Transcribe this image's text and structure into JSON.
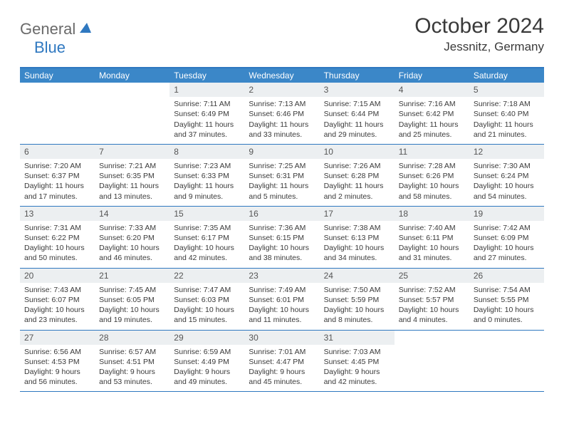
{
  "brand": {
    "general": "General",
    "blue": "Blue"
  },
  "title": "October 2024",
  "location": "Jessnitz, Germany",
  "dow": [
    "Sunday",
    "Monday",
    "Tuesday",
    "Wednesday",
    "Thursday",
    "Friday",
    "Saturday"
  ],
  "colors": {
    "header_bg": "#3b87c8",
    "border": "#2f78c0",
    "daynum_bg": "#eceff1",
    "text": "#3a3a3a",
    "logo_gray": "#6a6a6a"
  },
  "weeks": [
    [
      {
        "n": "",
        "sr": "",
        "ss": "",
        "dl": ""
      },
      {
        "n": "",
        "sr": "",
        "ss": "",
        "dl": ""
      },
      {
        "n": "1",
        "sr": "Sunrise: 7:11 AM",
        "ss": "Sunset: 6:49 PM",
        "dl": "Daylight: 11 hours and 37 minutes."
      },
      {
        "n": "2",
        "sr": "Sunrise: 7:13 AM",
        "ss": "Sunset: 6:46 PM",
        "dl": "Daylight: 11 hours and 33 minutes."
      },
      {
        "n": "3",
        "sr": "Sunrise: 7:15 AM",
        "ss": "Sunset: 6:44 PM",
        "dl": "Daylight: 11 hours and 29 minutes."
      },
      {
        "n": "4",
        "sr": "Sunrise: 7:16 AM",
        "ss": "Sunset: 6:42 PM",
        "dl": "Daylight: 11 hours and 25 minutes."
      },
      {
        "n": "5",
        "sr": "Sunrise: 7:18 AM",
        "ss": "Sunset: 6:40 PM",
        "dl": "Daylight: 11 hours and 21 minutes."
      }
    ],
    [
      {
        "n": "6",
        "sr": "Sunrise: 7:20 AM",
        "ss": "Sunset: 6:37 PM",
        "dl": "Daylight: 11 hours and 17 minutes."
      },
      {
        "n": "7",
        "sr": "Sunrise: 7:21 AM",
        "ss": "Sunset: 6:35 PM",
        "dl": "Daylight: 11 hours and 13 minutes."
      },
      {
        "n": "8",
        "sr": "Sunrise: 7:23 AM",
        "ss": "Sunset: 6:33 PM",
        "dl": "Daylight: 11 hours and 9 minutes."
      },
      {
        "n": "9",
        "sr": "Sunrise: 7:25 AM",
        "ss": "Sunset: 6:31 PM",
        "dl": "Daylight: 11 hours and 5 minutes."
      },
      {
        "n": "10",
        "sr": "Sunrise: 7:26 AM",
        "ss": "Sunset: 6:28 PM",
        "dl": "Daylight: 11 hours and 2 minutes."
      },
      {
        "n": "11",
        "sr": "Sunrise: 7:28 AM",
        "ss": "Sunset: 6:26 PM",
        "dl": "Daylight: 10 hours and 58 minutes."
      },
      {
        "n": "12",
        "sr": "Sunrise: 7:30 AM",
        "ss": "Sunset: 6:24 PM",
        "dl": "Daylight: 10 hours and 54 minutes."
      }
    ],
    [
      {
        "n": "13",
        "sr": "Sunrise: 7:31 AM",
        "ss": "Sunset: 6:22 PM",
        "dl": "Daylight: 10 hours and 50 minutes."
      },
      {
        "n": "14",
        "sr": "Sunrise: 7:33 AM",
        "ss": "Sunset: 6:20 PM",
        "dl": "Daylight: 10 hours and 46 minutes."
      },
      {
        "n": "15",
        "sr": "Sunrise: 7:35 AM",
        "ss": "Sunset: 6:17 PM",
        "dl": "Daylight: 10 hours and 42 minutes."
      },
      {
        "n": "16",
        "sr": "Sunrise: 7:36 AM",
        "ss": "Sunset: 6:15 PM",
        "dl": "Daylight: 10 hours and 38 minutes."
      },
      {
        "n": "17",
        "sr": "Sunrise: 7:38 AM",
        "ss": "Sunset: 6:13 PM",
        "dl": "Daylight: 10 hours and 34 minutes."
      },
      {
        "n": "18",
        "sr": "Sunrise: 7:40 AM",
        "ss": "Sunset: 6:11 PM",
        "dl": "Daylight: 10 hours and 31 minutes."
      },
      {
        "n": "19",
        "sr": "Sunrise: 7:42 AM",
        "ss": "Sunset: 6:09 PM",
        "dl": "Daylight: 10 hours and 27 minutes."
      }
    ],
    [
      {
        "n": "20",
        "sr": "Sunrise: 7:43 AM",
        "ss": "Sunset: 6:07 PM",
        "dl": "Daylight: 10 hours and 23 minutes."
      },
      {
        "n": "21",
        "sr": "Sunrise: 7:45 AM",
        "ss": "Sunset: 6:05 PM",
        "dl": "Daylight: 10 hours and 19 minutes."
      },
      {
        "n": "22",
        "sr": "Sunrise: 7:47 AM",
        "ss": "Sunset: 6:03 PM",
        "dl": "Daylight: 10 hours and 15 minutes."
      },
      {
        "n": "23",
        "sr": "Sunrise: 7:49 AM",
        "ss": "Sunset: 6:01 PM",
        "dl": "Daylight: 10 hours and 11 minutes."
      },
      {
        "n": "24",
        "sr": "Sunrise: 7:50 AM",
        "ss": "Sunset: 5:59 PM",
        "dl": "Daylight: 10 hours and 8 minutes."
      },
      {
        "n": "25",
        "sr": "Sunrise: 7:52 AM",
        "ss": "Sunset: 5:57 PM",
        "dl": "Daylight: 10 hours and 4 minutes."
      },
      {
        "n": "26",
        "sr": "Sunrise: 7:54 AM",
        "ss": "Sunset: 5:55 PM",
        "dl": "Daylight: 10 hours and 0 minutes."
      }
    ],
    [
      {
        "n": "27",
        "sr": "Sunrise: 6:56 AM",
        "ss": "Sunset: 4:53 PM",
        "dl": "Daylight: 9 hours and 56 minutes."
      },
      {
        "n": "28",
        "sr": "Sunrise: 6:57 AM",
        "ss": "Sunset: 4:51 PM",
        "dl": "Daylight: 9 hours and 53 minutes."
      },
      {
        "n": "29",
        "sr": "Sunrise: 6:59 AM",
        "ss": "Sunset: 4:49 PM",
        "dl": "Daylight: 9 hours and 49 minutes."
      },
      {
        "n": "30",
        "sr": "Sunrise: 7:01 AM",
        "ss": "Sunset: 4:47 PM",
        "dl": "Daylight: 9 hours and 45 minutes."
      },
      {
        "n": "31",
        "sr": "Sunrise: 7:03 AM",
        "ss": "Sunset: 4:45 PM",
        "dl": "Daylight: 9 hours and 42 minutes."
      },
      {
        "n": "",
        "sr": "",
        "ss": "",
        "dl": ""
      },
      {
        "n": "",
        "sr": "",
        "ss": "",
        "dl": ""
      }
    ]
  ]
}
